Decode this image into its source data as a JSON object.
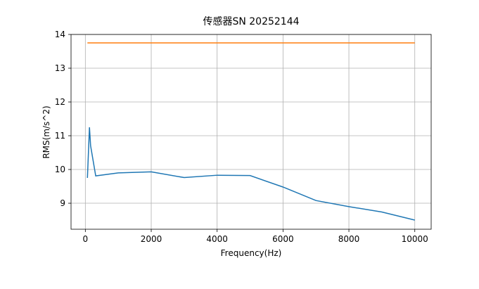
{
  "chart_data": {
    "type": "line",
    "title": "传感器SN 20252144",
    "x_label": "Frequency(Hz)",
    "y_label": "RMS(m/s^2)",
    "x": [
      63,
      125,
      160,
      315,
      1000,
      2000,
      3000,
      4000,
      5000,
      6000,
      7000,
      8000,
      9000,
      10000
    ],
    "series": [
      {
        "color": "#1f77b4",
        "values": [
          9.75,
          11.25,
          10.7,
          9.81,
          9.9,
          9.93,
          9.76,
          9.83,
          9.82,
          9.48,
          9.08,
          8.9,
          8.74,
          8.5
        ]
      },
      {
        "color": "#ff7f0e",
        "values": [
          13.75,
          13.75,
          13.75,
          13.75,
          13.75,
          13.75,
          13.75,
          13.75,
          13.75,
          13.75,
          13.75,
          13.75,
          13.75,
          13.75
        ]
      }
    ],
    "xlim": [
      -434,
      10497
    ],
    "ylim": [
      8.23,
      14
    ],
    "xticks": [
      0,
      2000,
      4000,
      6000,
      8000,
      10000
    ],
    "yticks": [
      9,
      10,
      11,
      12,
      13,
      14
    ],
    "grid": true
  }
}
